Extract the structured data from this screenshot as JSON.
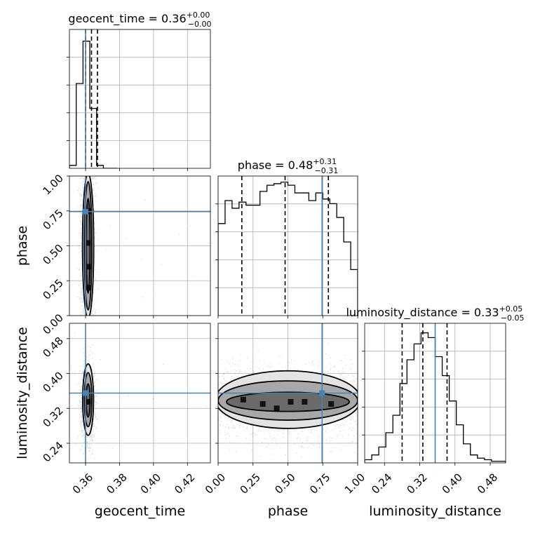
{
  "chart_data": {
    "type": "corner",
    "parameters": [
      "geocent_time",
      "phase",
      "luminosity_distance"
    ],
    "truths": {
      "geocent_time": 0.36,
      "phase": 0.745,
      "luminosity_distance": 0.355
    },
    "colors": {
      "truth": "#4682b4",
      "hist": "#000000",
      "grid": "#b0b0b0"
    },
    "grid": true,
    "marginals": [
      {
        "param": "geocent_time",
        "title": "geocent_time = 0.36",
        "title_sup": "+0.00",
        "title_sub": "−0.00",
        "range": [
          0.3505,
          0.4335
        ],
        "quantiles": [
          0.36,
          0.3635,
          0.367
        ],
        "bin_edges": [
          0.3505,
          0.3545,
          0.3585,
          0.3625,
          0.3665,
          0.3705,
          0.3745,
          0.3785
        ],
        "density": [
          0.02,
          0.58,
          0.87,
          0.41,
          0.02,
          0.0,
          0.0
        ],
        "ylim": [
          0,
          0.95
        ]
      },
      {
        "param": "phase",
        "title": "phase = 0.48",
        "title_sup": "+0.31",
        "title_sub": "−0.31",
        "range": [
          0.0,
          1.0
        ],
        "quantiles": [
          0.17,
          0.48,
          0.79
        ],
        "bin_edges": [
          0.0,
          0.05,
          0.1,
          0.15,
          0.2,
          0.25,
          0.3,
          0.35,
          0.4,
          0.45,
          0.5,
          0.55,
          0.6,
          0.65,
          0.7,
          0.75,
          0.8,
          0.85,
          0.9,
          0.95,
          1.0
        ],
        "density": [
          0.6,
          0.75,
          0.7,
          0.74,
          0.72,
          0.72,
          0.81,
          0.85,
          0.86,
          0.87,
          0.85,
          0.8,
          0.8,
          0.75,
          0.8,
          0.76,
          0.73,
          0.64,
          0.48,
          0.3
        ],
        "ylim": [
          0,
          0.91
        ]
      },
      {
        "param": "luminosity_distance",
        "title": "luminosity_distance = 0.33",
        "title_sup": "+0.05",
        "title_sub": "−0.05",
        "range": [
          0.195,
          0.515
        ],
        "quantiles": [
          0.28,
          0.327,
          0.382
        ],
        "bin_edges": [
          0.195,
          0.211,
          0.227,
          0.243,
          0.259,
          0.275,
          0.291,
          0.307,
          0.323,
          0.339,
          0.355,
          0.371,
          0.387,
          0.403,
          0.419,
          0.435,
          0.451,
          0.467,
          0.483,
          0.499,
          0.515
        ],
        "density": [
          0.02,
          0.05,
          0.1,
          0.19,
          0.3,
          0.5,
          0.65,
          0.75,
          0.82,
          0.79,
          0.67,
          0.55,
          0.39,
          0.24,
          0.12,
          0.05,
          0.03,
          0.02,
          0.01,
          0.01
        ],
        "ylim": [
          0,
          0.88
        ]
      }
    ],
    "axes": {
      "geocent_time": {
        "label": "geocent_time",
        "ticks": [
          0.36,
          0.38,
          0.4,
          0.42
        ],
        "tick_labels": [
          "0.36",
          "0.38",
          "0.40",
          "0.42"
        ]
      },
      "phase": {
        "label": "phase",
        "ticks": [
          0.0,
          0.25,
          0.5,
          0.75,
          1.0
        ],
        "tick_labels": [
          "0.00",
          "0.25",
          "0.50",
          "0.75",
          "1.00"
        ]
      },
      "luminosity_distance": {
        "label": "luminosity_distance",
        "ticks": [
          0.24,
          0.32,
          0.4,
          0.48
        ],
        "tick_labels": [
          "0.24",
          "0.32",
          "0.40",
          "0.48"
        ]
      }
    },
    "pairs": [
      {
        "x": "geocent_time",
        "y": "phase",
        "samples": {
          "x_mean": 0.361,
          "x_sd": 0.0021,
          "y_min": 0.0,
          "y_max": 1.0
        },
        "contours": [
          {
            "level": 0.5,
            "cx": 0.3615,
            "cy": 0.5,
            "rx": 0.0012,
            "ry": 0.34
          },
          {
            "level": 0.8,
            "cx": 0.3615,
            "cy": 0.5,
            "rx": 0.0022,
            "ry": 0.46
          },
          {
            "level": 0.95,
            "cx": 0.3615,
            "cy": 0.5,
            "rx": 0.0033,
            "ry": 0.52
          }
        ],
        "dark_cells": [
          {
            "x": 0.3615,
            "y": 0.52
          },
          {
            "x": 0.3615,
            "y": 0.75
          },
          {
            "x": 0.3615,
            "y": 0.35
          },
          {
            "x": 0.3615,
            "y": 0.2
          }
        ]
      },
      {
        "x": "geocent_time",
        "y": "luminosity_distance",
        "samples": {
          "x_mean": 0.361,
          "x_sd": 0.0021,
          "y_mean": 0.335,
          "y_sd": 0.045
        },
        "contours": [
          {
            "level": 0.5,
            "cx": 0.3615,
            "cy": 0.338,
            "rx": 0.0012,
            "ry": 0.038
          },
          {
            "level": 0.8,
            "cx": 0.3615,
            "cy": 0.34,
            "rx": 0.0022,
            "ry": 0.062
          },
          {
            "level": 0.95,
            "cx": 0.3615,
            "cy": 0.34,
            "rx": 0.0032,
            "ry": 0.082
          }
        ],
        "dark_cells": [
          {
            "x": 0.3615,
            "y": 0.335
          }
        ]
      },
      {
        "x": "phase",
        "y": "luminosity_distance",
        "samples": {
          "x_min": 0.0,
          "x_max": 1.0,
          "y_mean": 0.335,
          "y_sd": 0.045
        },
        "contours": [
          {
            "level": 0.5,
            "cx": 0.5,
            "cy": 0.335,
            "rx": 0.44,
            "ry": 0.022
          },
          {
            "level": 0.8,
            "cx": 0.5,
            "cy": 0.338,
            "rx": 0.5,
            "ry": 0.045
          },
          {
            "level": 0.95,
            "cx": 0.5,
            "cy": 0.34,
            "rx": 0.52,
            "ry": 0.066
          }
        ],
        "dark_cells": [
          {
            "x": 0.32,
            "y": 0.33
          },
          {
            "x": 0.52,
            "y": 0.335
          },
          {
            "x": 0.81,
            "y": 0.33
          },
          {
            "x": 0.42,
            "y": 0.32
          },
          {
            "x": 0.62,
            "y": 0.335
          },
          {
            "x": 0.18,
            "y": 0.34
          }
        ]
      }
    ]
  }
}
